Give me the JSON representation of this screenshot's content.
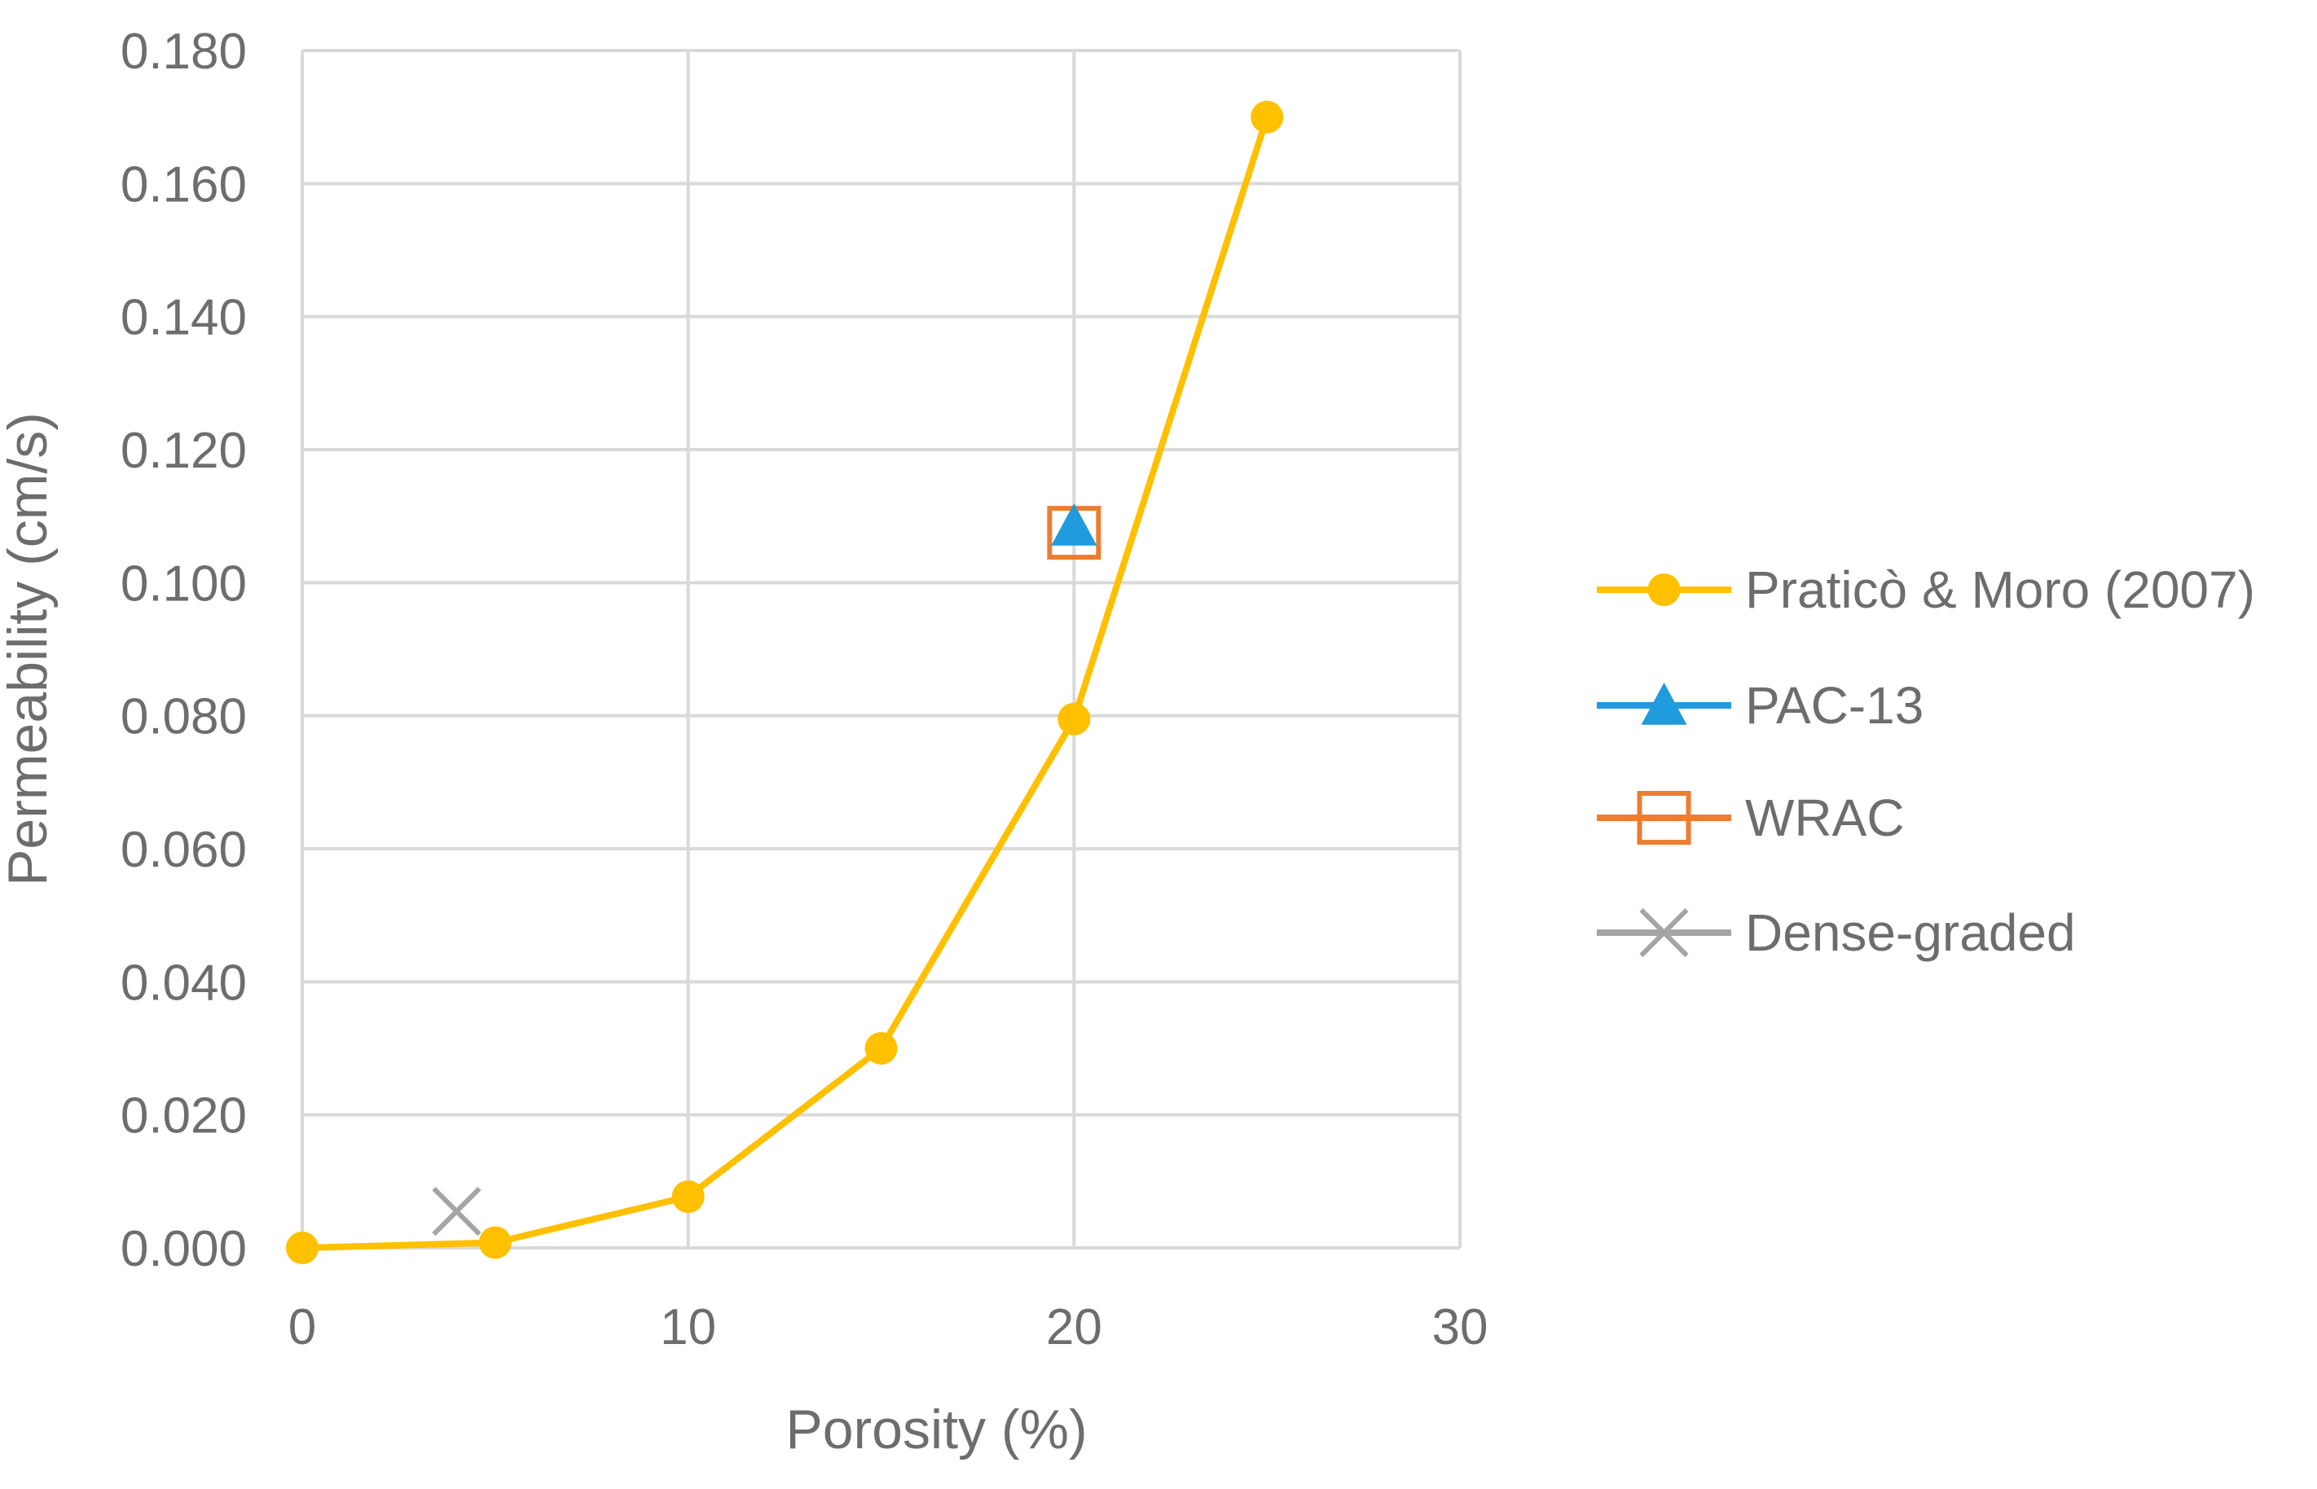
{
  "chart_data": {
    "type": "scatter",
    "title": "",
    "xlabel": "Porosity (%)",
    "ylabel": "Permeability (cm/s)",
    "xlim": [
      0,
      30
    ],
    "ylim": [
      0,
      0.18
    ],
    "x_ticks": [
      0,
      10,
      20,
      30
    ],
    "x_tick_labels": [
      "0",
      "10",
      "20",
      "30"
    ],
    "y_ticks": [
      0,
      0.02,
      0.04,
      0.06,
      0.08,
      0.1,
      0.12,
      0.14,
      0.16,
      0.18
    ],
    "y_tick_labels": [
      "0.000",
      "0.020",
      "0.040",
      "0.060",
      "0.080",
      "0.100",
      "0.120",
      "0.140",
      "0.160",
      "0.180"
    ],
    "grid": true,
    "legend_position": "right",
    "series": [
      {
        "name": "Praticò & Moro (2007)",
        "marker": "circle",
        "line": true,
        "color": "#FFC000",
        "points": [
          {
            "x": 0,
            "y": 0.0
          },
          {
            "x": 5,
            "y": 0.0008
          },
          {
            "x": 10,
            "y": 0.0077
          },
          {
            "x": 15,
            "y": 0.03
          },
          {
            "x": 20,
            "y": 0.0795
          },
          {
            "x": 25,
            "y": 0.17
          }
        ]
      },
      {
        "name": "PAC-13",
        "marker": "triangle",
        "line": false,
        "color": "#1F9BDE",
        "points": [
          {
            "x": 20,
            "y": 0.1085
          }
        ]
      },
      {
        "name": "WRAC",
        "marker": "square-open",
        "line": false,
        "color": "#ED7D31",
        "points": [
          {
            "x": 20,
            "y": 0.1075
          }
        ]
      },
      {
        "name": "Dense-graded",
        "marker": "x",
        "line": false,
        "color": "#A5A5A5",
        "points": [
          {
            "x": 4,
            "y": 0.0055
          }
        ]
      }
    ]
  }
}
